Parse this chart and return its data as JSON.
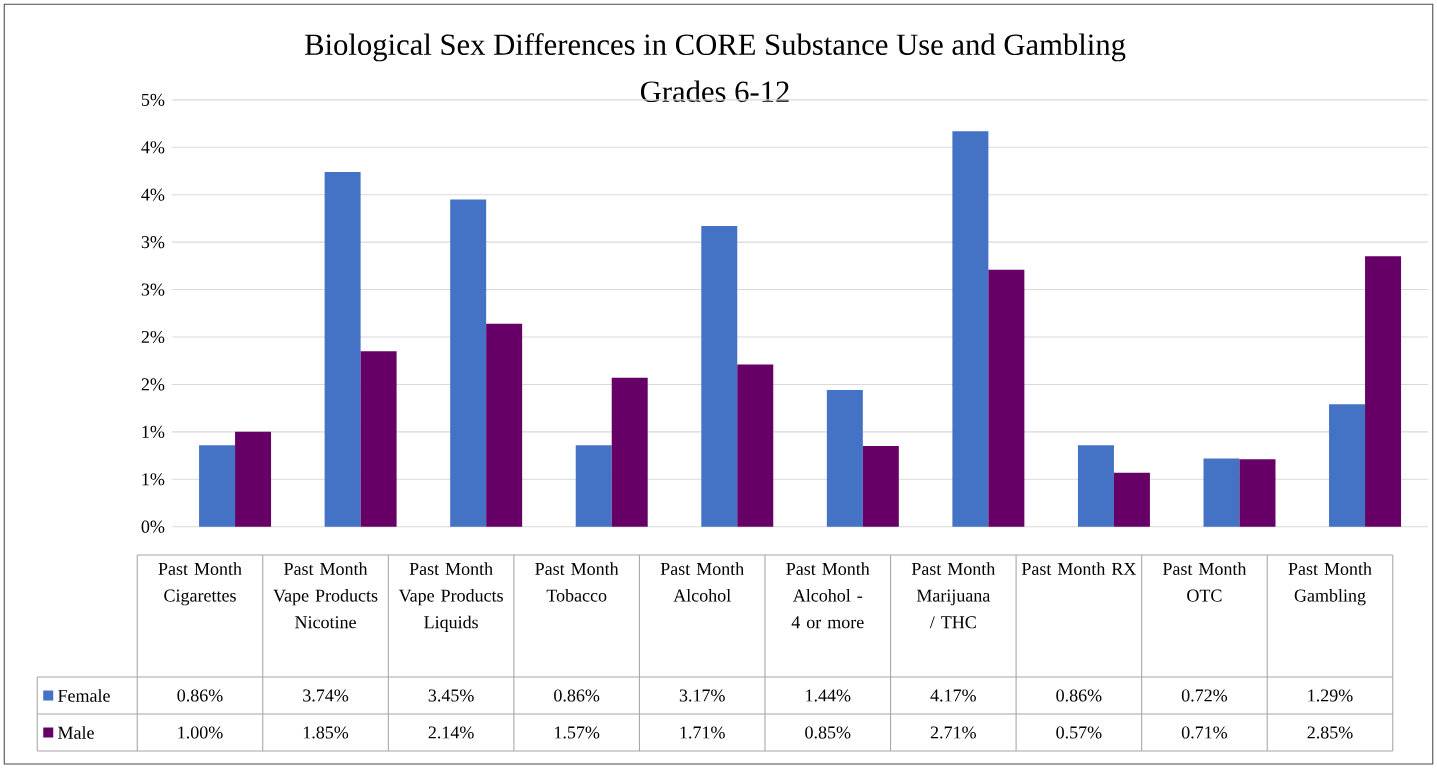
{
  "chart_data": {
    "type": "bar",
    "title": "Biological Sex Differences in CORE Substance Use and Gambling",
    "subtitle": "Grades 6-12",
    "categories": [
      "Past Month Cigarettes",
      "Past Month Vape Products Nicotine",
      "Past Month Vape Products Liquids",
      "Past Month Tobacco",
      "Past Month Alcohol",
      "Past Month Alcohol - 4 or more",
      "Past Month Marijuana / THC",
      "Past Month RX",
      "Past Month OTC",
      "Past Month Gambling"
    ],
    "series": [
      {
        "name": "Female",
        "color": "#4472c4",
        "values": [
          0.86,
          3.74,
          3.45,
          0.86,
          3.17,
          1.44,
          4.17,
          0.86,
          0.72,
          1.29
        ],
        "value_labels": [
          "0.86%",
          "3.74%",
          "3.45%",
          "0.86%",
          "3.17%",
          "1.44%",
          "4.17%",
          "0.86%",
          "0.72%",
          "1.29%"
        ]
      },
      {
        "name": "Male",
        "color": "#660066",
        "values": [
          1.0,
          1.85,
          2.14,
          1.57,
          1.71,
          0.85,
          2.71,
          0.57,
          0.71,
          2.85
        ],
        "value_labels": [
          "1.00%",
          "1.85%",
          "2.14%",
          "1.57%",
          "1.71%",
          "0.85%",
          "2.71%",
          "0.57%",
          "0.71%",
          "2.85%"
        ]
      }
    ],
    "ylim": [
      0,
      4.5
    ],
    "yticks": [
      {
        "value": 0,
        "label": "0%"
      },
      {
        "value": 0.5,
        "label": "1%"
      },
      {
        "value": 1,
        "label": "1%"
      },
      {
        "value": 1.5,
        "label": "2%"
      },
      {
        "value": 2,
        "label": "2%"
      },
      {
        "value": 2.5,
        "label": "3%"
      },
      {
        "value": 3,
        "label": "3%"
      },
      {
        "value": 3.5,
        "label": "4%"
      },
      {
        "value": 4,
        "label": "4%"
      },
      {
        "value": 4.5,
        "label": "5%"
      }
    ],
    "grid": "y",
    "legend": "bottom"
  }
}
